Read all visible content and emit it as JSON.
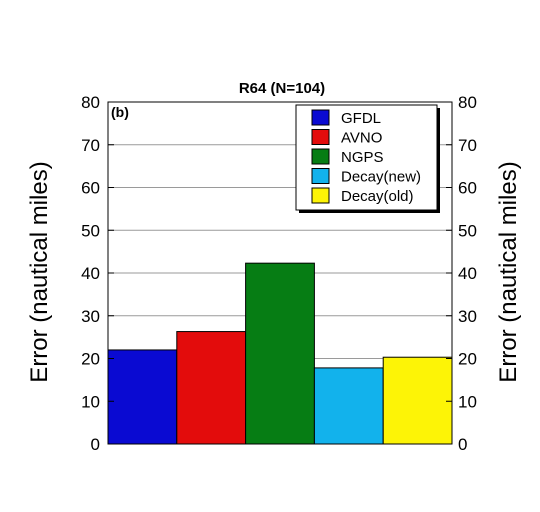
{
  "chart_data": {
    "type": "bar",
    "title": "R64 (N=104)",
    "panel_label": "(b)",
    "ylabel_left": "Error (nautical miles)",
    "ylabel_right": "Error (nautical miles)",
    "ylim": [
      0,
      80
    ],
    "yticks": [
      0,
      10,
      20,
      30,
      40,
      50,
      60,
      70,
      80
    ],
    "grid": true,
    "legend_position": "top-right",
    "categories": [
      "GFDL",
      "AVNO",
      "NGPS",
      "Decay(new)",
      "Decay(old)"
    ],
    "values": [
      22,
      26.3,
      42.3,
      17.8,
      20.3
    ],
    "colors": [
      "#0a0ad2",
      "#e30c0c",
      "#067d14",
      "#12b2ec",
      "#fdf406"
    ]
  }
}
